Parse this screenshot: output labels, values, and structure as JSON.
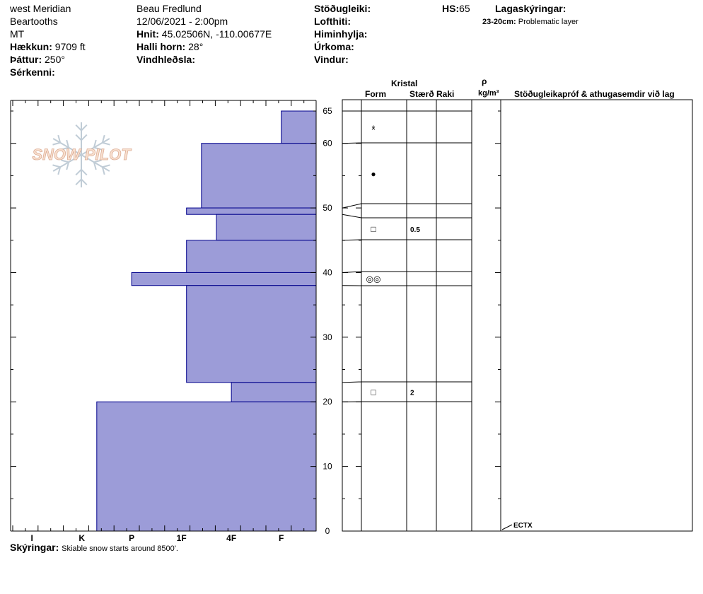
{
  "header": {
    "location": "west Meridian",
    "range": "Beartooths",
    "state": "MT",
    "elevation_label": "Hækkun:",
    "elevation_value": "9709 ft",
    "aspect_label": "Þáttur:",
    "aspect_value": "250°",
    "features_label": "Sérkenni:",
    "observer": "Beau  Fredlund",
    "datetime": "12/06/2021 - 2:00pm",
    "coords_label": "Hnit:",
    "coords_value": "45.02506N, -110.00677E",
    "slope_label": "Halli horn:",
    "slope_value": "28°",
    "wind_loading_label": "Vindhleðsla:",
    "stability_label": "Stöðugleiki:",
    "air_temp_label": "Lofthiti:",
    "sky_label": "Himinhylja:",
    "precip_label": "Úrkoma:",
    "wind_label": "Vindur:",
    "hs_label": "HS:",
    "hs_value": "65",
    "layer_notes_label": "Lagaskýringar:",
    "layer_note_range": "23-20cm:",
    "layer_note_text": "Problematic layer"
  },
  "logo": {
    "text": "SNOW PILOT"
  },
  "columns": {
    "crystal": "Kristal",
    "form": "Form",
    "size": "Stærð",
    "moisture": "Raki",
    "rho": "ρ",
    "density_unit": "kg/m³",
    "tests": "Stöðugleikapróf & athugasemdir við lag"
  },
  "footer": {
    "notes_label": "Skýringar:",
    "notes_text": "Skiable snow starts around 8500'."
  },
  "colors": {
    "hardness_fill": "#9c9cd8",
    "hardness_stroke": "#00008b"
  },
  "chart_data": {
    "type": "bar",
    "orientation": "horizontal",
    "ylim": [
      0,
      65
    ],
    "y_ticks": [
      0,
      10,
      20,
      30,
      40,
      50,
      60,
      65
    ],
    "x_categories": [
      "I",
      "K",
      "P",
      "1F",
      "4F",
      "F"
    ],
    "hardness_layers": [
      {
        "top": 65,
        "bottom": 60,
        "hardness": 0.7
      },
      {
        "top": 60,
        "bottom": 50,
        "hardness": 2.3
      },
      {
        "top": 50,
        "bottom": 49,
        "hardness": 2.6
      },
      {
        "top": 49,
        "bottom": 45,
        "hardness": 2.0
      },
      {
        "top": 45,
        "bottom": 40,
        "hardness": 2.6
      },
      {
        "top": 40,
        "bottom": 38,
        "hardness": 3.7
      },
      {
        "top": 38,
        "bottom": 23,
        "hardness": 2.6
      },
      {
        "top": 23,
        "bottom": 20,
        "hardness": 1.7
      },
      {
        "top": 20,
        "bottom": 0,
        "hardness": 4.4
      }
    ],
    "layer_boundaries": [
      65,
      60,
      50.5,
      48.5,
      45,
      40,
      38,
      23,
      20
    ],
    "crystal_rows": [
      {
        "top": 65,
        "bottom": 60,
        "form": "⨰",
        "size": ""
      },
      {
        "top": 60,
        "bottom": 50.5,
        "form": "●",
        "size": ""
      },
      {
        "top": 48.5,
        "bottom": 45,
        "form": "□",
        "size": "0.5"
      },
      {
        "top": 40,
        "bottom": 38,
        "form": "◎◎",
        "size": ""
      },
      {
        "top": 23,
        "bottom": 20,
        "form": "□",
        "size": "2"
      }
    ],
    "tests": [
      {
        "depth": 0,
        "label": "ECTX"
      }
    ]
  }
}
